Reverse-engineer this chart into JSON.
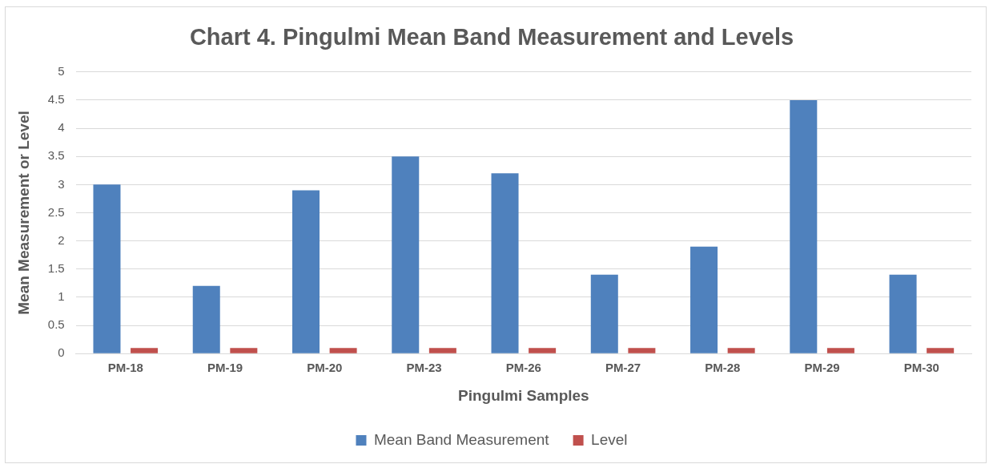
{
  "chart_data": {
    "type": "bar",
    "title": "Chart 4. Pingulmi Mean Band Measurement and Levels",
    "xlabel": "Pingulmi Samples",
    "ylabel": "Mean Measurement or Level",
    "categories": [
      "PM-18",
      "PM-19",
      "PM-20",
      "PM-23",
      "PM-26",
      "PM-27",
      "PM-28",
      "PM-29",
      "PM-30"
    ],
    "series": [
      {
        "name": "Mean Band Measurement",
        "color": "#4f81bd",
        "values": [
          3,
          1.2,
          2.9,
          3.5,
          3.2,
          1.4,
          1.9,
          4.5,
          1.4
        ]
      },
      {
        "name": "Level",
        "color": "#c0504d",
        "values": [
          0.1,
          0.1,
          0.1,
          0.1,
          0.1,
          0.1,
          0.1,
          0.1,
          0.1
        ]
      }
    ],
    "ylim": [
      0,
      5
    ],
    "yticks": [
      0,
      0.5,
      1,
      1.5,
      2,
      2.5,
      3,
      3.5,
      4,
      4.5,
      5
    ],
    "grid": "y",
    "legend": "bottom"
  }
}
